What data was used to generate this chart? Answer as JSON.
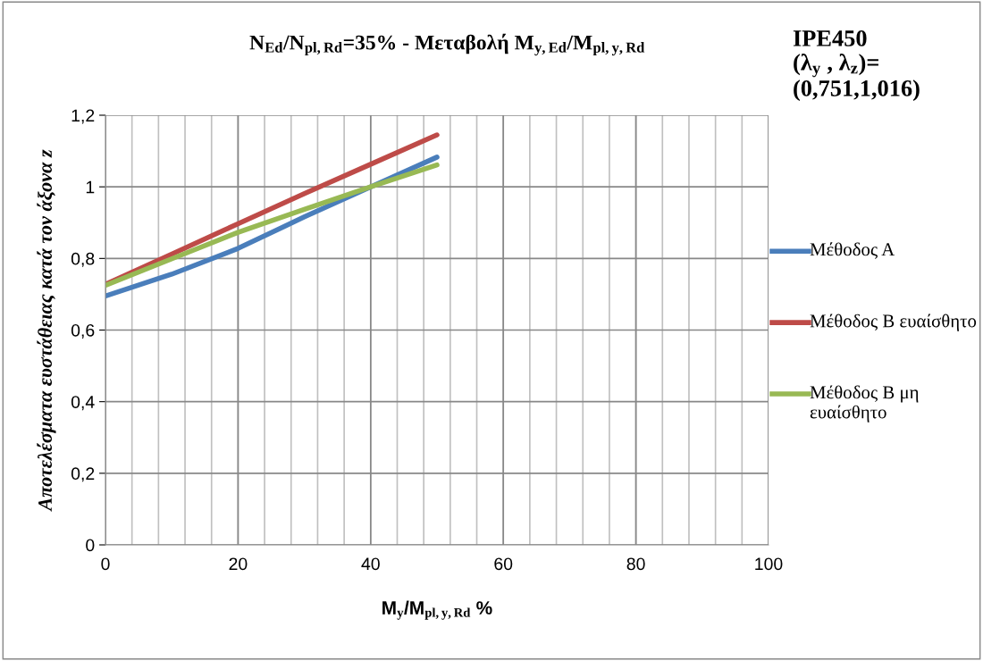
{
  "chart_data": {
    "type": "line",
    "title": "N$_{Ed}$/N$_{pl,Rd}$=35% - Μεταβολή M$_{y,Ed}$/M$_{pl,y,Rd}$",
    "annotations": [
      "IPE450\n(λ$_{y}$ , λ$_{z}$)=\n(0,751,1,016)"
    ],
    "xlabel": "M$_{y}$/M$_{pl,y,Rd}$ %",
    "ylabel": "Αποτελέσματα ευστάθειας κατά τον άξονα z",
    "x": [
      0,
      10,
      20,
      30,
      40,
      50
    ],
    "series": [
      {
        "name": "Μέθοδος Α",
        "color": "#4a7ebb",
        "values": [
          0.695,
          0.756,
          0.828,
          0.916,
          1.0,
          1.083
        ]
      },
      {
        "name": "Μέθοδος Β ευαίσθητο",
        "color": "#be4b48",
        "values": [
          0.728,
          0.812,
          0.897,
          0.981,
          1.063,
          1.145
        ]
      },
      {
        "name": "Μέθοδος Β μη ευαίσθητο",
        "color": "#98b954",
        "values": [
          0.725,
          0.799,
          0.873,
          0.937,
          1.0,
          1.061
        ]
      }
    ],
    "xlim": [
      0,
      100
    ],
    "xticks": [
      0,
      {
        "value": 4,
        "label": null
      },
      {
        "value": 8,
        "label": null
      },
      {
        "value": 12,
        "label": null
      },
      {
        "value": 16,
        "label": null
      },
      20,
      {
        "value": 24,
        "label": null
      },
      {
        "value": 28,
        "label": null
      },
      {
        "value": 32,
        "label": null
      },
      {
        "value": 36,
        "label": null
      },
      40,
      {
        "value": 44,
        "label": null
      },
      {
        "value": 48,
        "label": null
      },
      {
        "value": 52,
        "label": null
      },
      {
        "value": 56,
        "label": null
      },
      60,
      {
        "value": 64,
        "label": null
      },
      {
        "value": 68,
        "label": null
      },
      {
        "value": 72,
        "label": null
      },
      {
        "value": 76,
        "label": null
      },
      80,
      {
        "value": 84,
        "label": null
      },
      {
        "value": 88,
        "label": null
      },
      {
        "value": 92,
        "label": null
      },
      {
        "value": 96,
        "label": null
      },
      100
    ],
    "ylim": [
      0,
      1.2
    ],
    "yticks": [
      0,
      {
        "value": 0.2,
        "label": "0,2"
      },
      {
        "value": 0.4,
        "label": "0,4"
      },
      {
        "value": 0.6,
        "label": "0,6"
      },
      {
        "value": 0.8,
        "label": "0,8"
      },
      {
        "value": 1,
        "label": "1"
      },
      {
        "value": 1.2,
        "label": "1,2"
      }
    ],
    "grid": true,
    "legend": "right",
    "marker": "none",
    "line_style": "solid"
  }
}
